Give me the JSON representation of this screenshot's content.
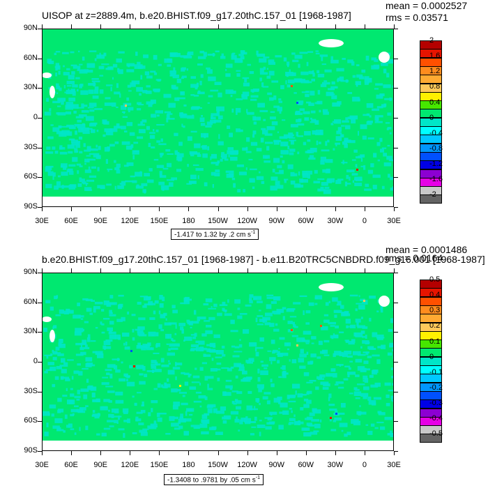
{
  "panels": [
    {
      "title": "UISOP at z=2889.4m, b.e20.BHIST.f09_g17.20thC.157_01 [1968-1987]",
      "mean": "mean = 0.0002527",
      "rms": "rms = 0.03571",
      "range": "-1.417 to 1.32 by .2 cm s",
      "range_exp": "-1",
      "colorbar_labels": [
        "2",
        "1.6",
        "1.2",
        "0.8",
        "0.4",
        "0",
        "-0.4",
        "-0.8",
        "-1.2",
        "-1.6",
        "-2"
      ]
    },
    {
      "title": "b.e20.BHIST.f09_g17.20thC.157_01 [1968-1987] - b.e11.B20TRC5CNBDRD.f09_g16.001 [1968-1987]",
      "mean": "mean = 0.0001486",
      "rms": "rms = 0.0164",
      "range": "-1.3408 to .9781 by .05 cm s",
      "range_exp": "-1",
      "colorbar_labels": [
        "0.5",
        "0.4",
        "0.3",
        "0.2",
        "0.1",
        "0",
        "-0.1",
        "-0.2",
        "-0.3",
        "-0.4",
        "-0.5"
      ]
    }
  ],
  "lat_labels": [
    "90N",
    "60N",
    "30N",
    "0",
    "30S",
    "60S",
    "90S"
  ],
  "lon_labels": [
    "30E",
    "60E",
    "90E",
    "120E",
    "150E",
    "180",
    "150W",
    "120W",
    "90W",
    "60W",
    "30W",
    "0",
    "30E"
  ],
  "colors": {
    "field_main": "#00e870",
    "field_light": "#00e6c8",
    "land_missing": "#ffffff"
  },
  "colorbar_colors": [
    "#b40000",
    "#e61400",
    "#ff5000",
    "#ff8c1e",
    "#ffaa32",
    "#ffc85a",
    "#fff000",
    "#46e600",
    "#00e870",
    "#00e6c8",
    "#00ffff",
    "#00c8ff",
    "#0096ff",
    "#0050ff",
    "#0000e6",
    "#8c00d2",
    "#e600e6",
    "#c8c8c8",
    "#646464"
  ]
}
